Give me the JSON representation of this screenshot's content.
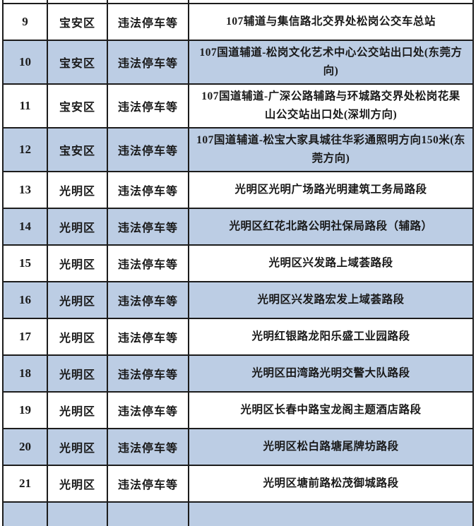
{
  "colors": {
    "row_shade": "#BCCDE4",
    "border": "#1C1C1C",
    "text": "#191919",
    "page_background": "#FFFFFF"
  },
  "table": {
    "description_fields": [
      "no",
      "district",
      "violation",
      "location"
    ],
    "rows": [
      {
        "no": "9",
        "district": "宝安区",
        "violation": "违法停车等",
        "location": "107辅道与集信路北交界处松岗公交车总站",
        "shaded": false
      },
      {
        "no": "10",
        "district": "宝安区",
        "violation": "违法停车等",
        "location": "107国道辅道-松岗文化艺术中心公交站出口处(东莞方向)",
        "shaded": true
      },
      {
        "no": "11",
        "district": "宝安区",
        "violation": "违法停车等",
        "location": "107国道辅道-广深公路辅路与环城路交界处松岗花果山公交站出口处(深圳方向)",
        "shaded": false
      },
      {
        "no": "12",
        "district": "宝安区",
        "violation": "违法停车等",
        "location": "107国道辅道-松宝大家具城往华彩通照明方向150米(东莞方向)",
        "shaded": true
      },
      {
        "no": "13",
        "district": "光明区",
        "violation": "违法停车等",
        "location": "光明区光明广场路光明建筑工务局路段",
        "shaded": false
      },
      {
        "no": "14",
        "district": "光明区",
        "violation": "违法停车等",
        "location": "光明区红花北路公明社保局路段（辅路）",
        "shaded": true
      },
      {
        "no": "15",
        "district": "光明区",
        "violation": "违法停车等",
        "location": "光明区兴发路上域荟路段",
        "shaded": false
      },
      {
        "no": "16",
        "district": "光明区",
        "violation": "违法停车等",
        "location": "光明区兴发路宏发上域荟路段",
        "shaded": true
      },
      {
        "no": "17",
        "district": "光明区",
        "violation": "违法停车等",
        "location": "光明红银路龙阳乐盛工业园路段",
        "shaded": false
      },
      {
        "no": "18",
        "district": "光明区",
        "violation": "违法停车等",
        "location": "光明区田湾路光明交警大队路段",
        "shaded": true
      },
      {
        "no": "19",
        "district": "光明区",
        "violation": "违法停车等",
        "location": "光明区长春中路宝龙阁主题酒店路段",
        "shaded": false
      },
      {
        "no": "20",
        "district": "光明区",
        "violation": "违法停车等",
        "location": "光明区松白路塘尾牌坊路段",
        "shaded": true
      },
      {
        "no": "21",
        "district": "光明区",
        "violation": "违法停车等",
        "location": "光明区塘前路松茂御城路段",
        "shaded": false
      }
    ]
  }
}
